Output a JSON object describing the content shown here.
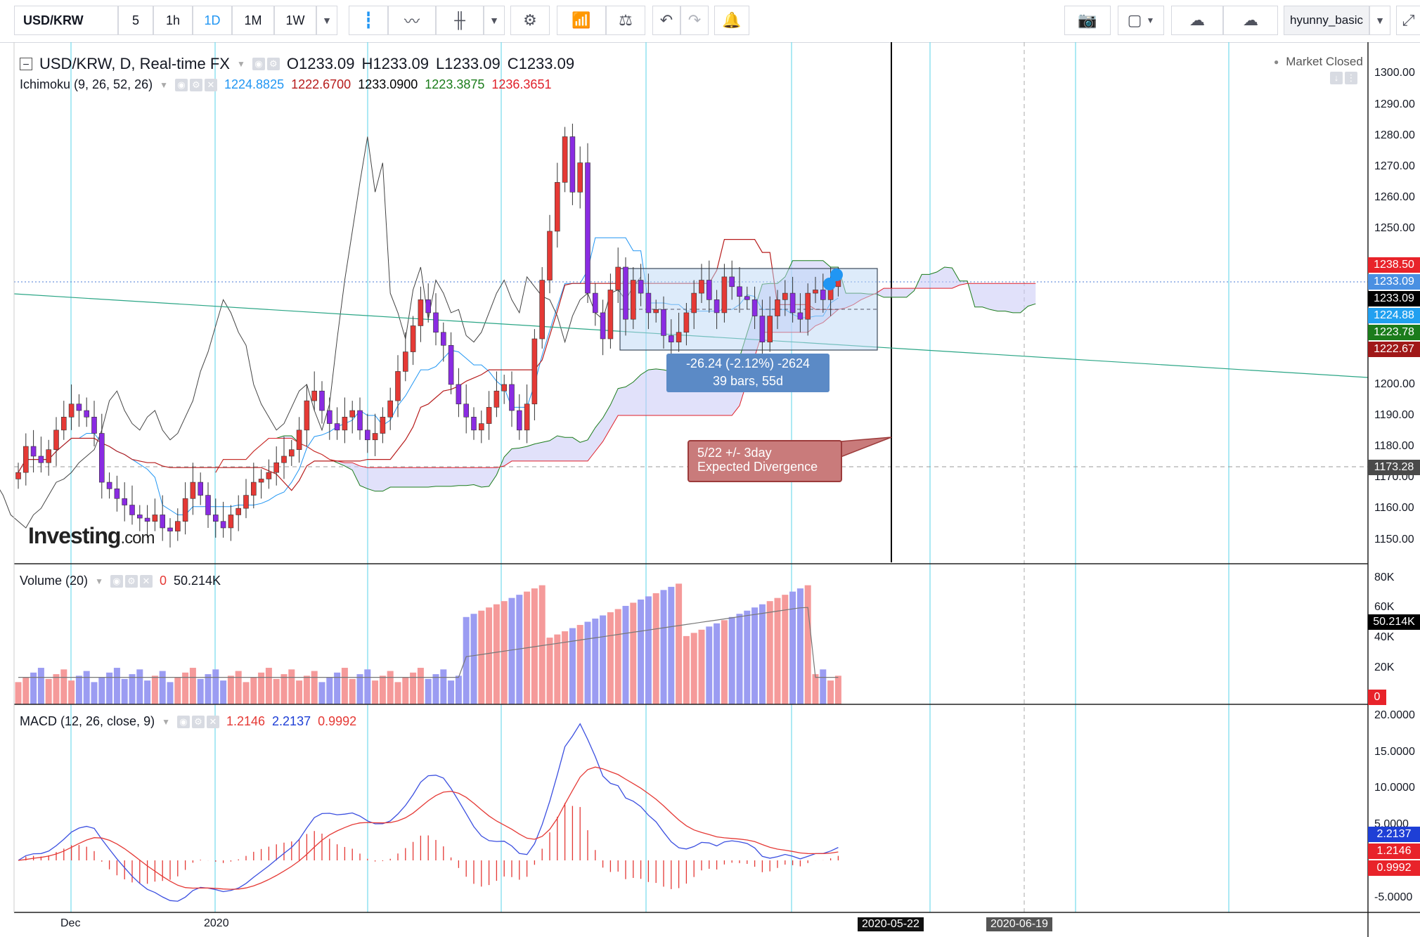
{
  "toolbar": {
    "symbol": "USD/KRW",
    "intervals": [
      "5",
      "1h",
      "1D",
      "1M",
      "1W"
    ],
    "active_interval": "1D",
    "user": "hyunny_basic"
  },
  "chart_title": {
    "symbol_line": "USD/KRW, D, Real-time FX",
    "o": "O1233.09",
    "h": "H1233.09",
    "l": "L1233.09",
    "c": "C1233.09",
    "status": "Market Closed"
  },
  "ichimoku": {
    "label": "Ichimoku (9, 26, 52, 26)",
    "v1": "1224.8825",
    "v2": "1222.6700",
    "v3": "1233.0900",
    "v4": "1223.3875",
    "v5": "1236.3651",
    "c1": "#2196f3",
    "c2": "#b71c1c",
    "c3": "#000000",
    "c4": "#1b7c1b",
    "c5": "#e0202a"
  },
  "volume_legend": {
    "label": "Volume (20)",
    "v1": "0",
    "v2": "50.214K"
  },
  "macd_legend": {
    "label": "MACD (12, 26, close, 9)",
    "v1": "1.2146",
    "v2": "2.2137",
    "v3": "0.9992"
  },
  "measure": {
    "line1": "-26.24 (-2.12%) -2624",
    "line2": "39 bars, 55d"
  },
  "callout": {
    "line1": "5/22  +/- 3day",
    "line2": "Expected Divergence"
  },
  "watermark": {
    "brand": "Investing",
    "suffix": ".com"
  },
  "price_axis": {
    "ticks": [
      "1300.00",
      "1290.00",
      "1280.00",
      "1270.00",
      "1260.00",
      "1250.00",
      "1200.00",
      "1190.00",
      "1180.00",
      "1170.00",
      "1160.00",
      "1150.00"
    ],
    "tags": [
      {
        "text": "1238.50",
        "color": "#e8232a"
      },
      {
        "text": "1233.09",
        "color": "#4a90e2"
      },
      {
        "text": "1233.09",
        "color": "#000000"
      },
      {
        "text": "1224.88",
        "color": "#21a0f0"
      },
      {
        "text": "1223.78",
        "color": "#1b7c1b"
      },
      {
        "text": "1222.67",
        "color": "#a01818"
      },
      {
        "text": "1173.28",
        "color": "#4a4a4a"
      }
    ]
  },
  "volume_axis": {
    "ticks": [
      "80K",
      "60K",
      "40K",
      "20K"
    ],
    "tag_current": "50.214K",
    "tag_zero": "0"
  },
  "macd_axis": {
    "ticks": [
      "20.0000",
      "15.0000",
      "10.0000",
      "5.0000",
      "-5.0000"
    ],
    "tags": [
      "2.2137",
      "1.2146",
      "0.9992"
    ]
  },
  "time_axis": {
    "labels": [
      "Dec",
      "2020",
      "2020-05-22",
      "2020-06-19"
    ]
  },
  "chart_data": {
    "type": "candlestick",
    "title": "USD/KRW, D, Real-time FX",
    "ylim": [
      1145,
      1305
    ],
    "x_labels": [
      "Dec",
      "2020"
    ],
    "close_series": [
      1173,
      1181,
      1178,
      1176,
      1180,
      1186,
      1190,
      1194,
      1192,
      1190,
      1185,
      1170,
      1168,
      1165,
      1163,
      1160,
      1159,
      1158,
      1160,
      1156,
      1155,
      1158,
      1165,
      1170,
      1166,
      1160,
      1158,
      1156,
      1160,
      1162,
      1166,
      1170,
      1171,
      1173,
      1176,
      1178,
      1180,
      1186,
      1195,
      1198,
      1192,
      1188,
      1186,
      1190,
      1192,
      1186,
      1183,
      1185,
      1190,
      1195,
      1204,
      1210,
      1218,
      1226,
      1222,
      1216,
      1212,
      1200,
      1194,
      1190,
      1186,
      1188,
      1193,
      1198,
      1200,
      1192,
      1186,
      1194,
      1214,
      1232,
      1247,
      1262,
      1276,
      1259,
      1268,
      1228,
      1222,
      1214,
      1229,
      1236,
      1220,
      1232,
      1228,
      1222,
      1223,
      1215,
      1213,
      1216,
      1222,
      1228,
      1232,
      1226,
      1222,
      1233,
      1230,
      1227,
      1226,
      1221,
      1213,
      1221,
      1226,
      1228,
      1222,
      1220,
      1228,
      1229,
      1226,
      1230,
      1233
    ],
    "ichimoku_lines": {
      "tenkan_last": 1224.88,
      "kijun_last": 1222.67,
      "chikou_last": 1233.09,
      "span_a_last": 1223.39,
      "span_b_last": 1236.37
    },
    "volume": {
      "last": 50.214,
      "unit": "K",
      "ylim": [
        0,
        85
      ]
    },
    "macd": {
      "macd_last": 2.2137,
      "signal_last": 1.2146,
      "hist_last": 0.9992,
      "ylim": [
        -7,
        21
      ]
    }
  }
}
